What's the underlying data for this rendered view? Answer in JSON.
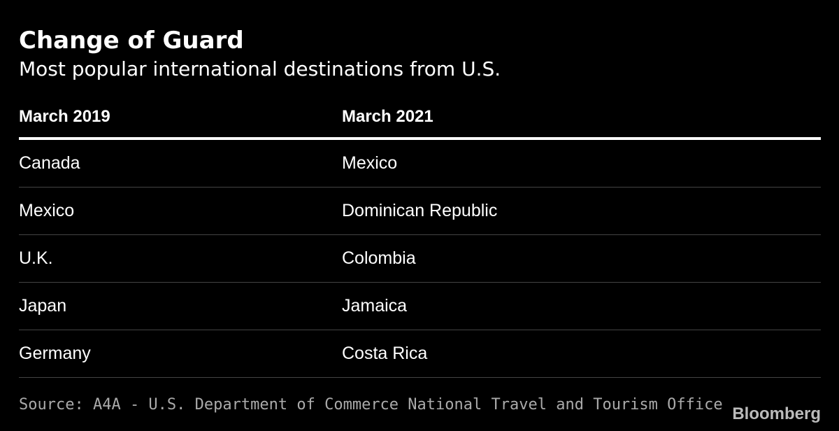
{
  "header": {
    "title": "Change of Guard",
    "subtitle": "Most popular international destinations from U.S."
  },
  "table": {
    "columns": [
      "March 2019",
      "March 2021"
    ],
    "rows": [
      [
        "Canada",
        "Mexico"
      ],
      [
        "Mexico",
        "Dominican Republic"
      ],
      [
        "U.K.",
        "Colombia"
      ],
      [
        "Japan",
        "Jamaica"
      ],
      [
        "Germany",
        "Costa Rica"
      ]
    ]
  },
  "footer": {
    "source": "Source: A4A - U.S. Department of Commerce National Travel and Tourism Office",
    "brand": "Bloomberg"
  }
}
